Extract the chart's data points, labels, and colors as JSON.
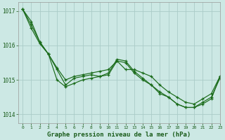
{
  "title": "Graphe pression niveau de la mer (hPa)",
  "bg_color": "#cce8e4",
  "grid_color": "#aaccc8",
  "line_color": "#1a6b1a",
  "text_color": "#1a5c1a",
  "xlim": [
    -0.5,
    23
  ],
  "ylim": [
    1013.75,
    1017.25
  ],
  "yticks": [
    1014,
    1015,
    1016,
    1017
  ],
  "xticks": [
    0,
    1,
    2,
    3,
    4,
    5,
    6,
    7,
    8,
    9,
    10,
    11,
    12,
    13,
    14,
    15,
    16,
    17,
    18,
    19,
    20,
    21,
    22,
    23
  ],
  "series": [
    [
      1017.05,
      1016.7,
      1016.1,
      1015.75,
      1015.0,
      1014.8,
      1014.9,
      1015.0,
      1015.05,
      1015.1,
      1015.15,
      1015.55,
      1015.5,
      1015.2,
      1015.0,
      1014.85,
      1014.65,
      1014.5,
      1014.3,
      1014.2,
      1014.2,
      1014.3,
      1014.45,
      1015.1
    ],
    [
      1017.05,
      1016.6,
      1016.1,
      1015.75,
      1015.35,
      1015.0,
      1015.1,
      1015.15,
      1015.2,
      1015.25,
      1015.3,
      1015.55,
      1015.3,
      1015.3,
      1015.2,
      1015.1,
      1014.85,
      1014.65,
      1014.5,
      1014.35,
      1014.3,
      1014.45,
      1014.6,
      1015.1
    ],
    [
      1017.05,
      1016.5,
      1016.05,
      1015.75,
      1015.3,
      1014.85,
      1015.05,
      1015.1,
      1015.15,
      1015.1,
      1015.2,
      1015.6,
      1015.55,
      1015.25,
      1015.05,
      1014.85,
      1014.6,
      1014.5,
      1014.3,
      1014.2,
      1014.2,
      1014.35,
      1014.5,
      1015.05
    ]
  ]
}
